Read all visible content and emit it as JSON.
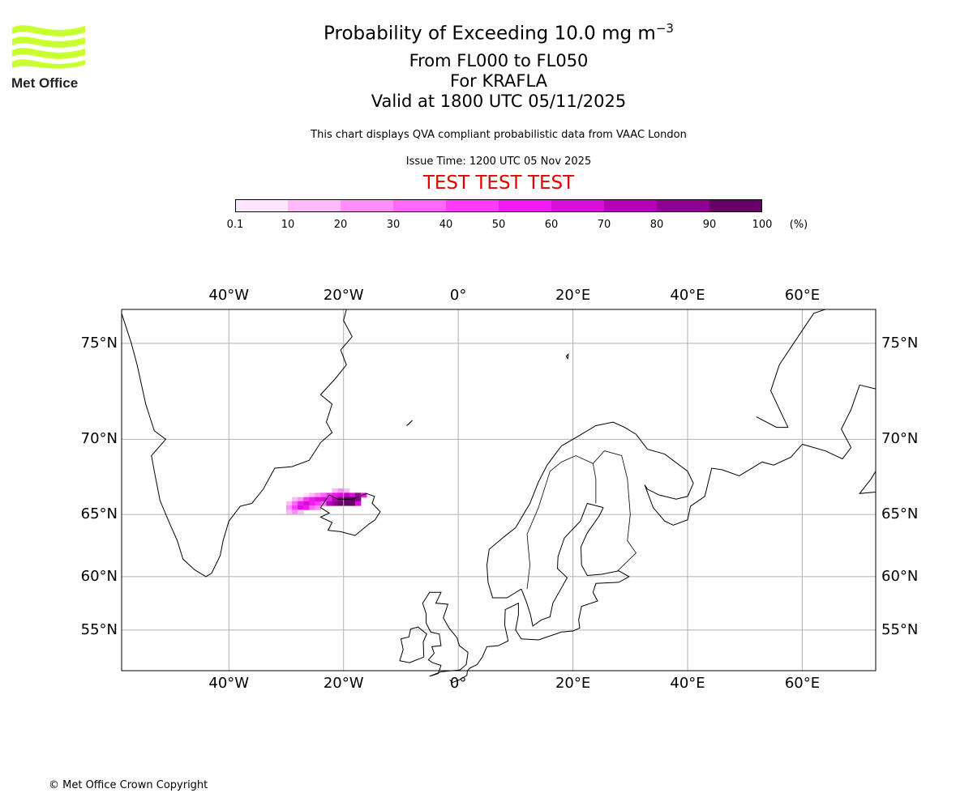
{
  "logo": {
    "text": "Met Office",
    "color": "#c8ff2e"
  },
  "title": {
    "line1": "Probability of Exceeding 10.0 mg m",
    "line1_sup": "−3",
    "line2": "From FL000 to FL050",
    "line3": "For KRAFLA",
    "line4": "Valid at 1800 UTC 05/11/2025",
    "description": "This chart displays QVA compliant probabilistic data from VAAC London",
    "issue_time": "Issue Time: 1200 UTC 05 Nov 2025",
    "test_banner": "TEST TEST TEST"
  },
  "colorbar": {
    "ticks": [
      "0.1",
      "10",
      "20",
      "30",
      "40",
      "50",
      "60",
      "70",
      "80",
      "90",
      "100"
    ],
    "unit": "(%)",
    "colors": [
      "#ffe6fc",
      "#fcbaf9",
      "#ff8ff8",
      "#ff66fa",
      "#ff3bfb",
      "#f21af2",
      "#d90fd9",
      "#b800b8",
      "#900090",
      "#660066"
    ]
  },
  "map": {
    "lon_ticks": [
      {
        "v": -40,
        "label": "40°W"
      },
      {
        "v": -20,
        "label": "20°W"
      },
      {
        "v": 0,
        "label": "0°"
      },
      {
        "v": 20,
        "label": "20°E"
      },
      {
        "v": 40,
        "label": "40°E"
      },
      {
        "v": 60,
        "label": "60°E"
      }
    ],
    "lat_ticks": [
      {
        "v": 75,
        "label": "75°N"
      },
      {
        "v": 70,
        "label": "70°N"
      },
      {
        "v": 65,
        "label": "65°N"
      },
      {
        "v": 60,
        "label": "60°N"
      },
      {
        "v": 55,
        "label": "55°N"
      }
    ],
    "extent": {
      "lon_min": -58.7,
      "lon_max": 72.8,
      "lat_min": 50.7,
      "lat_max": 76.46
    },
    "plume_rows": [
      {
        "lat": 66.7,
        "lon_start": -22,
        "values": [
          10,
          20,
          10
        ]
      },
      {
        "lat": 66.4,
        "lon_start": -27,
        "values": [
          5,
          10,
          20,
          30,
          40,
          50,
          60,
          70,
          60,
          80,
          50
        ]
      },
      {
        "lat": 66.1,
        "lon_start": -29,
        "values": [
          10,
          20,
          40,
          50,
          60,
          60,
          50,
          70,
          80,
          90,
          95,
          85
        ]
      },
      {
        "lat": 65.8,
        "lon_start": -30,
        "values": [
          10,
          30,
          50,
          60,
          50,
          40,
          30,
          70,
          80,
          90,
          95,
          90,
          60
        ]
      },
      {
        "lat": 65.5,
        "lon_start": -30,
        "values": [
          20,
          40,
          60,
          50,
          30,
          20
        ]
      },
      {
        "lat": 65.2,
        "lon_start": -30,
        "values": [
          10,
          20,
          10
        ]
      }
    ]
  },
  "footer": {
    "copyright": "© Met Office Crown Copyright"
  }
}
